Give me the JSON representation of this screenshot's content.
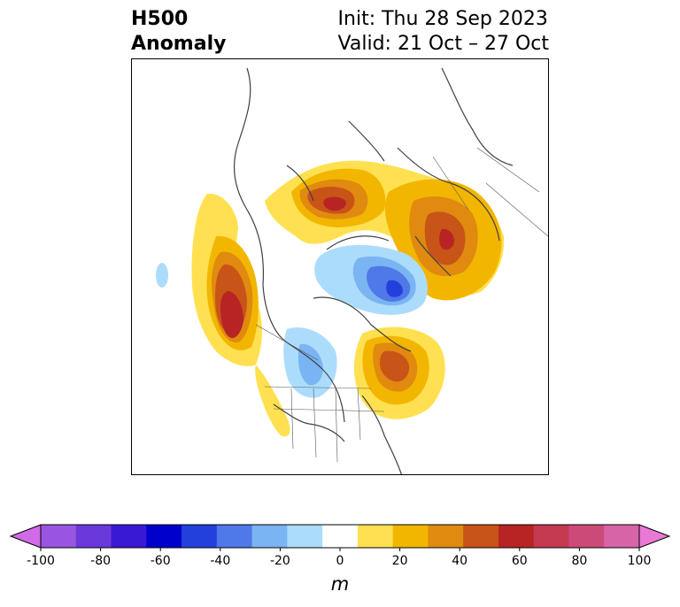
{
  "header": {
    "title_line1": "H500",
    "title_line2": "Anomaly",
    "init": "Init: Thu 28 Sep 2023",
    "valid": "Valid: 21 Oct – 27 Oct"
  },
  "colorbar": {
    "unit": "m",
    "ticks": [
      "-100",
      "-80",
      "-60",
      "-40",
      "-20",
      "0",
      "20",
      "40",
      "60",
      "80",
      "100"
    ],
    "colors": [
      "#d16ae8",
      "#9a55e0",
      "#6b38dc",
      "#3a19d4",
      "#0000cc",
      "#2440dc",
      "#4f78e8",
      "#7ab4f2",
      "#acdcfc",
      "#ffffff",
      "#ffe050",
      "#f2b600",
      "#e08a10",
      "#c85418",
      "#b82424",
      "#c43a50",
      "#cc4a78",
      "#d864a8",
      "#e87ad6"
    ]
  }
}
